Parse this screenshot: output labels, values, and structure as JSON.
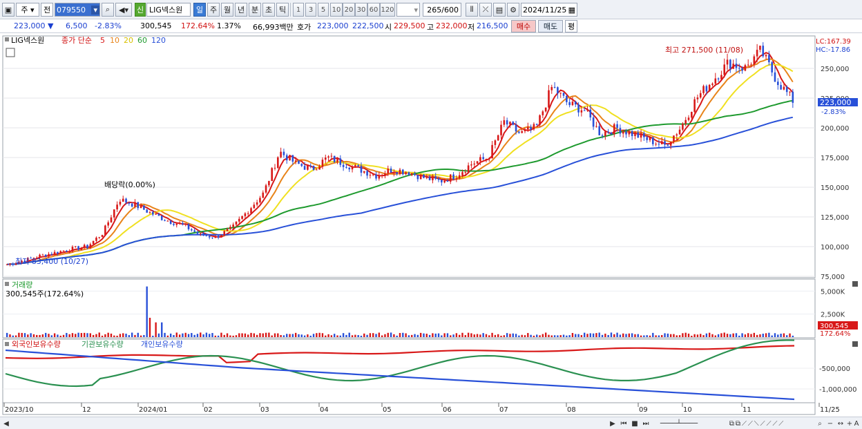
{
  "toolbar": {
    "period_label": "주",
    "mode_label": "전",
    "stock_code": "079550",
    "credit_badge": "신",
    "stock_name": "LIG넥스원",
    "timeframes": [
      "일",
      "주",
      "월",
      "년",
      "분",
      "초",
      "틱"
    ],
    "active_timeframe": "일",
    "intervals": [
      "1",
      "3",
      "5",
      "10",
      "20",
      "30",
      "60",
      "120"
    ],
    "count_display": "265",
    "count_total": "/600",
    "date_value": "2024/11/25"
  },
  "info": {
    "price": "223,000",
    "change": "6,500",
    "change_pct": "-2.83%",
    "volume": "300,545",
    "volume_ratio": "172.64%",
    "turnover": "1.37%",
    "amount": "66,993백만",
    "hoga_label": "호가",
    "ask": "223,000",
    "bid": "222,500",
    "open_label": "시",
    "open": "229,500",
    "high_label": "고",
    "high": "232,000",
    "low_label": "저",
    "low": "216,500",
    "buy_label": "매수",
    "sell_label": "매도",
    "eval_label": "평"
  },
  "price_panel": {
    "stock_legend": "LIG넥스원",
    "ma_legend_prefix": "종가 단순",
    "ma_periods": [
      "5",
      "10",
      "20",
      "60",
      "120"
    ],
    "ma_colors": [
      "#d81818",
      "#e8841a",
      "#f0e020",
      "#1e9a2e",
      "#2850d8"
    ],
    "lc_label": "LC:167.39",
    "hc_label": "HC:-17.86",
    "high_annotation": "최고 271,500 (11/08)",
    "low_annotation": "최저 83,400 (10/27)",
    "dividend_annotation": "배당락(0.00%)",
    "current_price_tag": "223,000",
    "current_pct_tag": "-2.83%",
    "y_ticks": [
      "250,000",
      "225,000",
      "200,000",
      "175,000",
      "150,000",
      "125,000",
      "100,000",
      "75,000"
    ]
  },
  "volume_panel": {
    "title": "거래량",
    "value_label": "300,545주(172.64%)",
    "y_ticks": [
      "5,000K",
      "2,500K"
    ],
    "current_tag": "300,545",
    "current_pct": "172.64%"
  },
  "holdings_panel": {
    "legend_foreign": "외국인보유수량",
    "legend_institution": "기관보유수량",
    "legend_individual": "개인보유수량",
    "y_ticks": [
      "-500,000",
      "-1,000,000"
    ]
  },
  "x_axis": {
    "labels": [
      "2023/10",
      "12",
      "2024/01",
      "02",
      "03",
      "04",
      "05",
      "06",
      "07",
      "08",
      "09",
      "10",
      "11",
      "11/25"
    ]
  },
  "chart_data": {
    "type": "candlestick",
    "price_range": [
      75000,
      275000
    ],
    "close_weekly": [
      85000,
      88000,
      92000,
      95000,
      98000,
      100000,
      112000,
      140000,
      135000,
      128000,
      122000,
      118000,
      110000,
      108000,
      115000,
      130000,
      145000,
      180000,
      170000,
      165000,
      175000,
      170000,
      165000,
      160000,
      165000,
      163000,
      158000,
      155000,
      160000,
      170000,
      175000,
      205000,
      195000,
      200000,
      235000,
      220000,
      215000,
      195000,
      200000,
      195000,
      190000,
      185000,
      200000,
      225000,
      240000,
      255000,
      250000,
      265000,
      240000,
      223000
    ],
    "volume_spike_date": "2023/12",
    "series_colors": {
      "foreign": "#d81818",
      "institution": "#2a9050",
      "individual": "#2850d8"
    }
  }
}
